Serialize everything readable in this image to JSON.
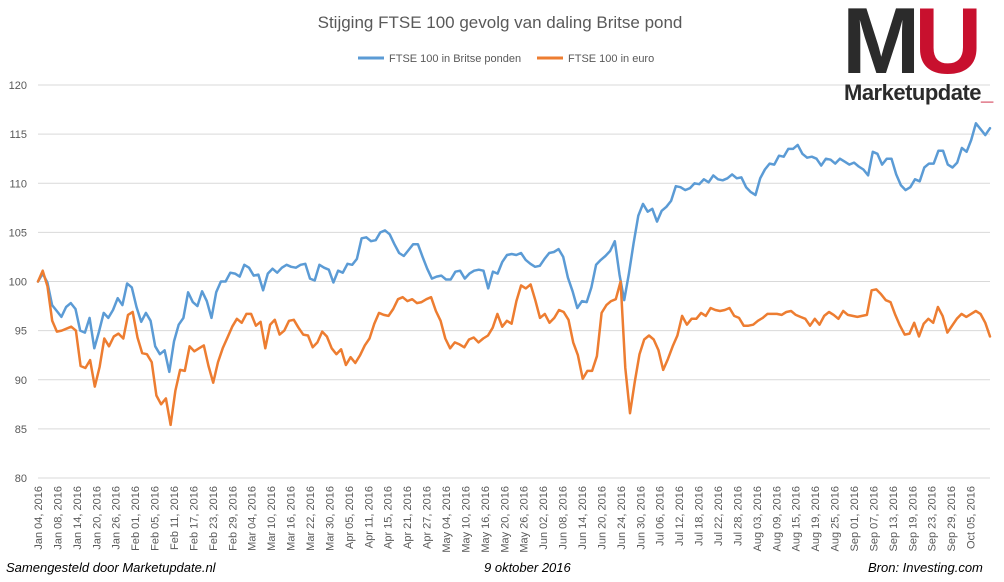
{
  "logo": {
    "mu_m": "M",
    "mu_u": "U",
    "wordmark": "Marketupdate",
    "wordmark_suffix": "_"
  },
  "footer": {
    "left": "Samengesteld door Marketupdate.nl",
    "center": "9 oktober 2016",
    "right": "Bron: Investing.com"
  },
  "colors": {
    "pound": "#5b9bd5",
    "euro": "#ed7d31",
    "grid": "#d9d9d9",
    "text": "#595959"
  },
  "chart_data": {
    "type": "line",
    "title": "Stijging FTSE 100 gevolg van daling Britse pond",
    "xlabel": "",
    "ylabel": "",
    "ylim": [
      80,
      120
    ],
    "yticks": [
      80,
      85,
      90,
      95,
      100,
      105,
      110,
      115,
      120
    ],
    "grid": true,
    "legend_position": "top",
    "x_tick_labels": [
      "Jan 04, 2016",
      "Jan 08, 2016",
      "Jan 14, 2016",
      "Jan 20, 2016",
      "Jan 26, 2016",
      "Feb 01, 2016",
      "Feb 05, 2016",
      "Feb 11, 2016",
      "Feb 17, 2016",
      "Feb 23, 2016",
      "Feb 29, 2016",
      "Mar 04, 2016",
      "Mar 10, 2016",
      "Mar 16, 2016",
      "Mar 22, 2016",
      "Mar 30, 2016",
      "Apr 05, 2016",
      "Apr 11, 2016",
      "Apr 15, 2016",
      "Apr 21, 2016",
      "Apr 27, 2016",
      "May 04, 2016",
      "May 10, 2016",
      "May 16, 2016",
      "May 20, 2016",
      "May 26, 2016",
      "Jun 02, 2016",
      "Jun 08, 2016",
      "Jun 14, 2016",
      "Jun 20, 2016",
      "Jun 24, 2016",
      "Jun 30, 2016",
      "Jul 06, 2016",
      "Jul 12, 2016",
      "Jul 18, 2016",
      "Jul 22, 2016",
      "Jul 28, 2016",
      "Aug 03, 2016",
      "Aug 09, 2016",
      "Aug 15, 2016",
      "Aug 19, 2016",
      "Aug 25, 2016",
      "Sep 01, 2016",
      "Sep 07, 2016",
      "Sep 13, 2016",
      "Sep 19, 2016",
      "Sep 23, 2016",
      "Sep 29, 2016",
      "Oct 05, 2016"
    ],
    "series": [
      {
        "name": "FTSE 100 in Britse ponden",
        "color": "#5b9bd5",
        "values": [
          100,
          100.8,
          99.9,
          97.6,
          97,
          96.4,
          97.4,
          97.8,
          97.2,
          95,
          94.8,
          96.3,
          93.2,
          94.9,
          96.8,
          96.3,
          97.1,
          98.3,
          97.6,
          99.8,
          99.4,
          97.4,
          95.9,
          96.8,
          96,
          93.4,
          92.6,
          93,
          90.8,
          93.9,
          95.6,
          96.3,
          98.9,
          97.9,
          97.5,
          99,
          98,
          96.3,
          98.9,
          100,
          100,
          100.9,
          100.8,
          100.5,
          101.7,
          101.4,
          100.6,
          100.7,
          99.1,
          100.8,
          101.3,
          100.9,
          101.4,
          101.7,
          101.5,
          101.4,
          101.7,
          101.8,
          100.3,
          100.1,
          101.7,
          101.4,
          101.2,
          99.9,
          101.1,
          100.9,
          101.8,
          101.7,
          102.3,
          104.4,
          104.5,
          104.1,
          104.2,
          105,
          105.2,
          104.8,
          103.8,
          102.9,
          102.6,
          103.2,
          103.8,
          103.8,
          102.5,
          101.3,
          100.3,
          100.5,
          100.6,
          100.2,
          100.2,
          101,
          101.1,
          100.3,
          100.8,
          101.1,
          101.2,
          101.1,
          99.3,
          101,
          100.8,
          102,
          102.7,
          102.8,
          102.7,
          102.9,
          102.2,
          101.8,
          101.5,
          101.6,
          102.3,
          102.9,
          103,
          103.3,
          102.5,
          100.4,
          99,
          97.3,
          98,
          97.9,
          99.4,
          101.7,
          102.2,
          102.6,
          103.1,
          104.1,
          100.7,
          98.1,
          100.8,
          103.9,
          106.7,
          107.9,
          107.1,
          107.4,
          106.1,
          107.2,
          107.6,
          108.2,
          109.7,
          109.6,
          109.3,
          109.5,
          110,
          109.9,
          110.4,
          110.1,
          110.8,
          110.4,
          110.3,
          110.5,
          110.9,
          110.5,
          110.6,
          109.6,
          109.1,
          108.8,
          110.5,
          111.4,
          112,
          111.9,
          112.8,
          112.7,
          113.5,
          113.5,
          113.9,
          113,
          112.6,
          112.7,
          112.5,
          111.8,
          112.5,
          112.4,
          112,
          112.5,
          112.2,
          111.9,
          112.1,
          111.7,
          111.4,
          110.8,
          113.2,
          113,
          111.9,
          112.5,
          112.5,
          110.9,
          109.8,
          109.3,
          109.6,
          110.4,
          110.2,
          111.6,
          112,
          112,
          113.3,
          113.3,
          111.9,
          111.6,
          112.1,
          113.6,
          113.2,
          114.4,
          116.1,
          115.5,
          114.9,
          115.6
        ]
      },
      {
        "name": "FTSE 100 in euro",
        "color": "#ed7d31",
        "values": [
          100,
          101.1,
          99.5,
          96,
          94.9,
          95,
          95.2,
          95.4,
          95,
          91.4,
          91.2,
          92,
          89.3,
          91.3,
          94.2,
          93.4,
          94.4,
          94.7,
          94.2,
          96.6,
          96.9,
          94.3,
          92.7,
          92.6,
          91.8,
          88.4,
          87.5,
          88.1,
          85.4,
          88.9,
          91,
          90.9,
          93.4,
          92.9,
          93.2,
          93.5,
          91.4,
          89.7,
          91.8,
          93.2,
          94.3,
          95.4,
          96.2,
          95.8,
          96.7,
          96.7,
          95.5,
          95.9,
          93.2,
          95.6,
          96.1,
          94.6,
          95,
          96,
          96.1,
          95.3,
          94.6,
          94.5,
          93.3,
          93.8,
          94.9,
          94.4,
          93.2,
          92.6,
          93.1,
          91.5,
          92.3,
          91.7,
          92.5,
          93.5,
          94.2,
          95.7,
          96.8,
          96.6,
          96.5,
          97.2,
          98.2,
          98.4,
          98,
          98.2,
          97.8,
          97.9,
          98.2,
          98.4,
          97,
          96,
          94.2,
          93.2,
          93.8,
          93.6,
          93.3,
          94.1,
          94.3,
          93.8,
          94.2,
          94.5,
          95.3,
          96.7,
          95.4,
          96,
          95.7,
          98,
          99.6,
          99.3,
          99.7,
          98.1,
          96.3,
          96.7,
          95.8,
          96.3,
          97.1,
          96.9,
          96.1,
          93.8,
          92.5,
          90.1,
          90.9,
          90.9,
          92.4,
          96.8,
          97.6,
          98,
          98.2,
          100,
          91.2,
          86.6,
          89.8,
          92.6,
          94.1,
          94.5,
          94.1,
          93,
          91,
          92.1,
          93.4,
          94.5,
          96.5,
          95.6,
          96.2,
          96.2,
          96.8,
          96.5,
          97.3,
          97.1,
          97,
          97.1,
          97.3,
          96.5,
          96.3,
          95.5,
          95.5,
          95.6,
          96,
          96.3,
          96.7,
          96.7,
          96.7,
          96.6,
          96.9,
          97,
          96.6,
          96.4,
          96.2,
          95.5,
          96.2,
          95.6,
          96.5,
          96.9,
          96.6,
          96.2,
          97,
          96.6,
          96.5,
          96.4,
          96.5,
          96.6,
          99.1,
          99.2,
          98.7,
          98.1,
          97.9,
          96.6,
          95.5,
          94.6,
          94.7,
          95.8,
          94.4,
          95.7,
          96.2,
          95.8,
          97.4,
          96.5,
          94.8,
          95.5,
          96.2,
          96.7,
          96.4,
          96.7,
          97,
          96.7,
          95.8,
          94.4
        ]
      }
    ]
  }
}
